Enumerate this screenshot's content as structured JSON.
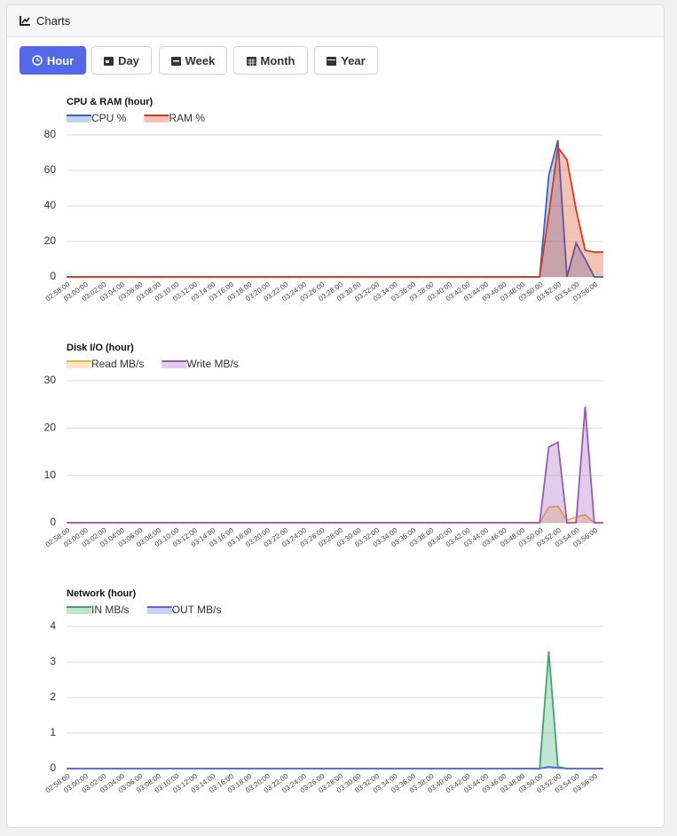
{
  "header": {
    "title": "Charts"
  },
  "buttons": [
    "Hour",
    "Day",
    "Week",
    "Month",
    "Year"
  ],
  "chart_data": [
    {
      "type": "area",
      "title": "CPU & RAM (hour)",
      "categories": [
        "02:58:00",
        null,
        "03:00:00",
        null,
        "03:02:00",
        null,
        "03:04:00",
        null,
        "03:06:00",
        null,
        "03:08:00",
        null,
        "03:10:00",
        null,
        "03:12:00",
        null,
        "03:14:00",
        null,
        "03:16:00",
        null,
        "03:18:00",
        null,
        "03:20:00",
        null,
        "03:22:00",
        null,
        "03:24:00",
        null,
        "03:26:00",
        null,
        "03:28:00",
        null,
        "03:30:00",
        null,
        "03:32:00",
        null,
        "03:34:00",
        null,
        "03:36:00",
        null,
        "03:38:00",
        null,
        "03:40:00",
        null,
        "03:42:00",
        null,
        "03:44:00",
        null,
        "03:46:00",
        null,
        "03:48:00",
        null,
        "03:50:00",
        null,
        "03:52:00",
        null,
        "03:54:00",
        null,
        "03:56:00",
        null
      ],
      "series": [
        {
          "name": "CPU %",
          "color": "#3366cc",
          "values": [
            0,
            0,
            0,
            0,
            0,
            0,
            0,
            0,
            0,
            0,
            0,
            0,
            0,
            0,
            0,
            0,
            0,
            0,
            0,
            0,
            0,
            0,
            0,
            0,
            0,
            0,
            0,
            0,
            0,
            0,
            0,
            0,
            0,
            0,
            0,
            0,
            0,
            0,
            0,
            0,
            0,
            0,
            0,
            0,
            0,
            0,
            0,
            0,
            0,
            0,
            0,
            0,
            0,
            57,
            77,
            0,
            19,
            10,
            0,
            0
          ]
        },
        {
          "name": "RAM %",
          "color": "#dc3912",
          "values": [
            0,
            0,
            0,
            0,
            0,
            0,
            0,
            0,
            0,
            0,
            0,
            0,
            0,
            0,
            0,
            0,
            0,
            0,
            0,
            0,
            0,
            0,
            0,
            0,
            0,
            0,
            0,
            0,
            0,
            0,
            0,
            0,
            0,
            0,
            0,
            0,
            0,
            0,
            0,
            0,
            0,
            0,
            0,
            0,
            0,
            0,
            0,
            0,
            0,
            0,
            0,
            0,
            0,
            35,
            73,
            66,
            38,
            15,
            14,
            14
          ]
        }
      ],
      "ylim": [
        0,
        80
      ],
      "yticks": [
        0,
        20,
        40,
        60,
        80
      ],
      "grid": true
    },
    {
      "type": "area",
      "title": "Disk I/O (hour)",
      "categories": [
        "02:58:00",
        null,
        "03:00:00",
        null,
        "03:02:00",
        null,
        "03:04:00",
        null,
        "03:06:00",
        null,
        "03:08:00",
        null,
        "03:10:00",
        null,
        "03:12:00",
        null,
        "03:14:00",
        null,
        "03:16:00",
        null,
        "03:18:00",
        null,
        "03:20:00",
        null,
        "03:22:00",
        null,
        "03:24:00",
        null,
        "03:26:00",
        null,
        "03:28:00",
        null,
        "03:30:00",
        null,
        "03:32:00",
        null,
        "03:34:00",
        null,
        "03:36:00",
        null,
        "03:38:00",
        null,
        "03:40:00",
        null,
        "03:42:00",
        null,
        "03:44:00",
        null,
        "03:46:00",
        null,
        "03:48:00",
        null,
        "03:50:00",
        null,
        "03:52:00",
        null,
        "03:54:00",
        null,
        "03:56:00",
        null
      ],
      "series": [
        {
          "name": "Read MB/s",
          "color": "#f0b050",
          "values": [
            0,
            0,
            0,
            0,
            0,
            0,
            0,
            0,
            0,
            0,
            0,
            0,
            0,
            0,
            0,
            0,
            0,
            0,
            0,
            0,
            0,
            0,
            0,
            0,
            0,
            0,
            0,
            0,
            0,
            0,
            0,
            0,
            0,
            0,
            0,
            0,
            0,
            0,
            0,
            0,
            0,
            0,
            0,
            0,
            0,
            0,
            0,
            0,
            0,
            0,
            0,
            0,
            0,
            3.3,
            3.5,
            0.5,
            1.2,
            1.7,
            0,
            0
          ]
        },
        {
          "name": "Write MB/s",
          "color": "#9b59b6",
          "values": [
            0,
            0,
            0,
            0,
            0,
            0,
            0,
            0,
            0,
            0,
            0,
            0,
            0,
            0,
            0,
            0,
            0,
            0,
            0,
            0,
            0,
            0,
            0,
            0,
            0,
            0,
            0,
            0,
            0,
            0,
            0,
            0,
            0,
            0,
            0,
            0,
            0,
            0,
            0,
            0,
            0,
            0,
            0,
            0,
            0,
            0,
            0,
            0,
            0,
            0,
            0,
            0,
            0,
            16,
            17,
            0,
            0,
            24.5,
            0,
            0
          ]
        }
      ],
      "ylim": [
        0,
        30
      ],
      "yticks": [
        0,
        10,
        20,
        30
      ],
      "grid": true
    },
    {
      "type": "area",
      "title": "Network (hour)",
      "categories": [
        "02:58:00",
        null,
        "03:00:00",
        null,
        "03:02:00",
        null,
        "03:04:00",
        null,
        "03:06:00",
        null,
        "03:08:00",
        null,
        "03:10:00",
        null,
        "03:12:00",
        null,
        "03:14:00",
        null,
        "03:16:00",
        null,
        "03:18:00",
        null,
        "03:20:00",
        null,
        "03:22:00",
        null,
        "03:24:00",
        null,
        "03:26:00",
        null,
        "03:28:00",
        null,
        "03:30:00",
        null,
        "03:32:00",
        null,
        "03:34:00",
        null,
        "03:36:00",
        null,
        "03:38:00",
        null,
        "03:40:00",
        null,
        "03:42:00",
        null,
        "03:44:00",
        null,
        "03:46:00",
        null,
        "03:48:00",
        null,
        "03:50:00",
        null,
        "03:52:00",
        null,
        "03:54:00",
        null,
        "03:56:00",
        null
      ],
      "series": [
        {
          "name": "IN MB/s",
          "color": "#3aa66a",
          "values": [
            0,
            0,
            0,
            0,
            0,
            0,
            0,
            0,
            0,
            0,
            0,
            0,
            0,
            0,
            0,
            0,
            0,
            0,
            0,
            0,
            0,
            0,
            0,
            0,
            0,
            0,
            0,
            0,
            0,
            0,
            0,
            0,
            0,
            0,
            0,
            0,
            0,
            0,
            0,
            0,
            0,
            0,
            0,
            0,
            0,
            0,
            0,
            0,
            0,
            0,
            0,
            0,
            0,
            3.3,
            0.05,
            0,
            0,
            0,
            0,
            0
          ]
        },
        {
          "name": "OUT MB/s",
          "color": "#5468e0",
          "values": [
            0,
            0,
            0,
            0,
            0,
            0,
            0,
            0,
            0,
            0,
            0,
            0,
            0,
            0,
            0,
            0,
            0,
            0,
            0,
            0,
            0,
            0,
            0,
            0,
            0,
            0,
            0,
            0,
            0,
            0,
            0,
            0,
            0,
            0,
            0,
            0,
            0,
            0,
            0,
            0,
            0,
            0,
            0,
            0,
            0,
            0,
            0,
            0,
            0,
            0,
            0,
            0,
            0,
            0.05,
            0.02,
            0,
            0,
            0,
            0,
            0
          ]
        }
      ],
      "ylim": [
        0,
        4
      ],
      "yticks": [
        0,
        1,
        2,
        3,
        4
      ],
      "grid": true
    }
  ]
}
